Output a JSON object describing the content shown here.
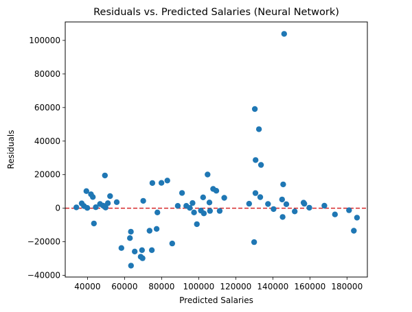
{
  "chart_data": {
    "type": "scatter",
    "title": "Residuals vs. Predicted Salaries (Neural Network)",
    "xlabel": "Predicted Salaries",
    "ylabel": "Residuals",
    "xlim": [
      28000,
      191000
    ],
    "ylim": [
      -41000,
      111000
    ],
    "xticks": [
      40000,
      60000,
      80000,
      100000,
      120000,
      140000,
      160000,
      180000
    ],
    "yticks": [
      -40000,
      -20000,
      0,
      20000,
      40000,
      60000,
      80000,
      100000
    ],
    "xtick_labels": [
      "40000",
      "60000",
      "80000",
      "100000",
      "120000",
      "140000",
      "160000",
      "180000"
    ],
    "ytick_labels": [
      "−40000",
      "−20000",
      "0",
      "20000",
      "40000",
      "60000",
      "80000",
      "100000"
    ],
    "grid": false,
    "reference_line": {
      "y": 0,
      "style": "dashed",
      "color": "#d62728"
    },
    "marker_color": "#1f77b4",
    "points": [
      {
        "x": 34000,
        "y": 500
      },
      {
        "x": 36900,
        "y": 2900
      },
      {
        "x": 38100,
        "y": 1300
      },
      {
        "x": 39400,
        "y": 10200
      },
      {
        "x": 39900,
        "y": 200
      },
      {
        "x": 41900,
        "y": 8300
      },
      {
        "x": 42900,
        "y": 6700
      },
      {
        "x": 43500,
        "y": -9100
      },
      {
        "x": 44500,
        "y": 600
      },
      {
        "x": 46800,
        "y": 2500
      },
      {
        "x": 48500,
        "y": 1500
      },
      {
        "x": 49400,
        "y": 19500
      },
      {
        "x": 49800,
        "y": 400
      },
      {
        "x": 51000,
        "y": 3000
      },
      {
        "x": 52200,
        "y": 7200
      },
      {
        "x": 55800,
        "y": 3600
      },
      {
        "x": 58300,
        "y": -23700
      },
      {
        "x": 62900,
        "y": -17800
      },
      {
        "x": 63400,
        "y": -14000
      },
      {
        "x": 63500,
        "y": -34200
      },
      {
        "x": 65500,
        "y": -25800
      },
      {
        "x": 68700,
        "y": -28900
      },
      {
        "x": 69400,
        "y": -25000
      },
      {
        "x": 69700,
        "y": -29800
      },
      {
        "x": 70100,
        "y": 4400
      },
      {
        "x": 73500,
        "y": -13400
      },
      {
        "x": 74700,
        "y": -25000
      },
      {
        "x": 75000,
        "y": 15000
      },
      {
        "x": 77300,
        "y": -12300
      },
      {
        "x": 77700,
        "y": -2500
      },
      {
        "x": 79900,
        "y": 15100
      },
      {
        "x": 83100,
        "y": 16500
      },
      {
        "x": 85700,
        "y": -21000
      },
      {
        "x": 88700,
        "y": 1400
      },
      {
        "x": 91000,
        "y": 9100
      },
      {
        "x": 93300,
        "y": 1400
      },
      {
        "x": 95200,
        "y": 200
      },
      {
        "x": 96700,
        "y": 3100
      },
      {
        "x": 97500,
        "y": -2500
      },
      {
        "x": 99000,
        "y": -9500
      },
      {
        "x": 101200,
        "y": -1400
      },
      {
        "x": 102400,
        "y": 6500
      },
      {
        "x": 102800,
        "y": -3100
      },
      {
        "x": 104800,
        "y": 20100
      },
      {
        "x": 105800,
        "y": 3400
      },
      {
        "x": 106100,
        "y": -1600
      },
      {
        "x": 107800,
        "y": 11500
      },
      {
        "x": 109500,
        "y": 10400
      },
      {
        "x": 111300,
        "y": -1600
      },
      {
        "x": 113800,
        "y": 6200
      },
      {
        "x": 127200,
        "y": 2700
      },
      {
        "x": 129900,
        "y": -20200
      },
      {
        "x": 130300,
        "y": 59100
      },
      {
        "x": 130700,
        "y": 28700
      },
      {
        "x": 130600,
        "y": 9000
      },
      {
        "x": 132500,
        "y": 47100
      },
      {
        "x": 133200,
        "y": 6600
      },
      {
        "x": 133600,
        "y": 25800
      },
      {
        "x": 137400,
        "y": 2500
      },
      {
        "x": 140400,
        "y": -500
      },
      {
        "x": 145000,
        "y": 5200
      },
      {
        "x": 145300,
        "y": -5200
      },
      {
        "x": 145600,
        "y": 14200
      },
      {
        "x": 146100,
        "y": 103900
      },
      {
        "x": 147300,
        "y": 2400
      },
      {
        "x": 151800,
        "y": -1900
      },
      {
        "x": 156600,
        "y": 3300
      },
      {
        "x": 157000,
        "y": 2700
      },
      {
        "x": 159700,
        "y": 300
      },
      {
        "x": 167800,
        "y": 1500
      },
      {
        "x": 173500,
        "y": -3700
      },
      {
        "x": 181100,
        "y": -1200
      },
      {
        "x": 183700,
        "y": -13400
      },
      {
        "x": 185400,
        "y": -5600
      }
    ]
  }
}
